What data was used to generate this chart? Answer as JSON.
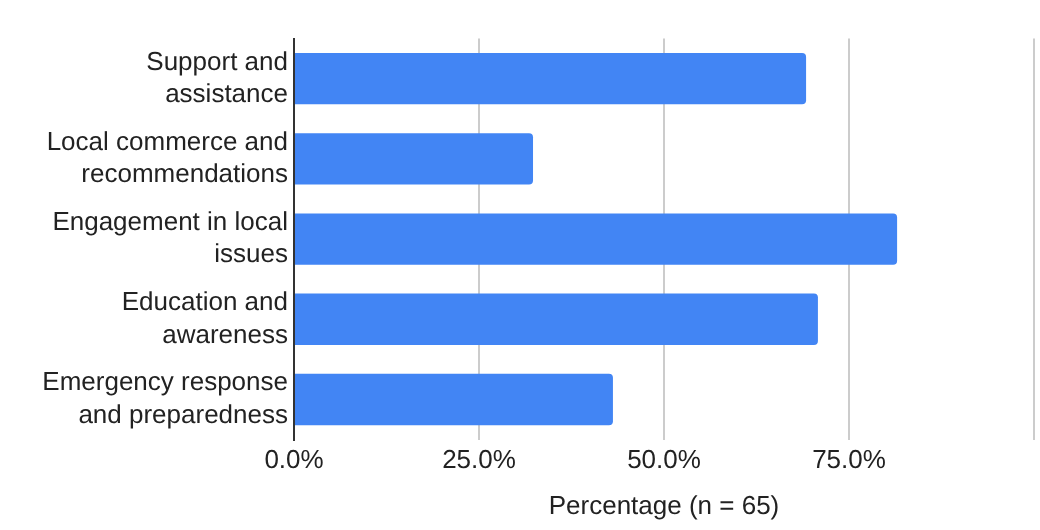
{
  "chart_data": {
    "type": "bar",
    "orientation": "horizontal",
    "categories": [
      "Support and assistance",
      "Local commerce and recommendations",
      "Engagement in local issues",
      "Education and awareness",
      "Emergency response and preparedness"
    ],
    "values": [
      69.2,
      32.3,
      81.5,
      70.8,
      43.1
    ],
    "color": "#4285f4",
    "xlim": [
      0,
      100
    ],
    "xticks": [
      {
        "value": 0,
        "label": "0.0%"
      },
      {
        "value": 25,
        "label": "25.0%"
      },
      {
        "value": 50,
        "label": "50.0%"
      },
      {
        "value": 75,
        "label": "75.0%"
      },
      {
        "value": 100,
        "label": null
      }
    ],
    "xlabel": "Percentage (n = 65)",
    "grid": "x",
    "legend": false
  }
}
